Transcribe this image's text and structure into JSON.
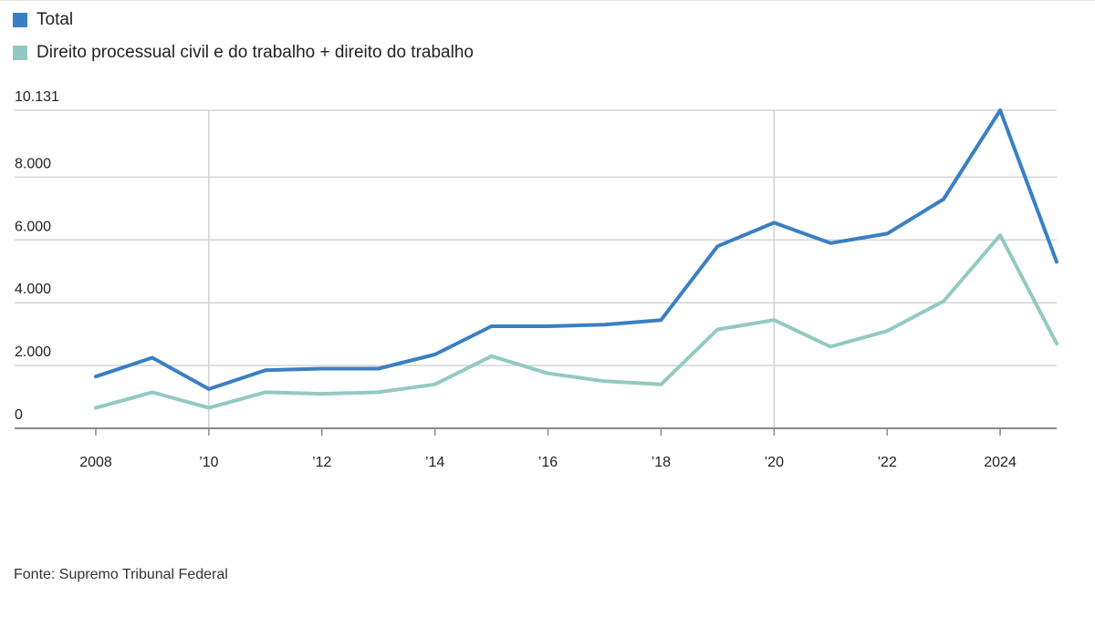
{
  "legend": [
    {
      "label": "Total",
      "color": "#3a7fc4"
    },
    {
      "label": "Direito processual civil e do trabalho + direito do trabalho",
      "color": "#93c9c3"
    }
  ],
  "source": "Fonte: Supremo Tribunal Federal",
  "chart_data": {
    "type": "line",
    "x": [
      2008,
      2009,
      2010,
      2011,
      2012,
      2013,
      2014,
      2015,
      2016,
      2017,
      2018,
      2019,
      2020,
      2021,
      2022,
      2023,
      2024,
      2025
    ],
    "x_tick_values": [
      2008,
      2010,
      2012,
      2014,
      2016,
      2018,
      2020,
      2022,
      2024
    ],
    "x_tick_labels": [
      "2008",
      "’10",
      "’12",
      "’14",
      "’16",
      "’18",
      "’20",
      "’22",
      "2024"
    ],
    "x_major_gridlines": [
      2010,
      2020
    ],
    "y_tick_values": [
      0,
      2000,
      4000,
      6000,
      8000,
      10131
    ],
    "y_tick_labels": [
      "0",
      "2.000",
      "4.000",
      "6.000",
      "8.000",
      "10.131"
    ],
    "ylim": [
      0,
      10131
    ],
    "xlim": [
      2008,
      2025
    ],
    "grid": true,
    "legend_position": "top-left",
    "series": [
      {
        "name": "Total",
        "color": "#3a7fc4",
        "values": [
          1650,
          2250,
          1250,
          1850,
          1900,
          1900,
          2350,
          3250,
          3250,
          3300,
          3450,
          5800,
          6550,
          5900,
          6200,
          7300,
          10131,
          5300
        ]
      },
      {
        "name": "Direito processual civil e do trabalho + direito do trabalho",
        "color": "#93c9c3",
        "values": [
          650,
          1150,
          650,
          1150,
          1100,
          1150,
          1400,
          2300,
          1750,
          1500,
          1400,
          3150,
          3450,
          2600,
          3100,
          4050,
          6150,
          2700
        ]
      }
    ]
  }
}
